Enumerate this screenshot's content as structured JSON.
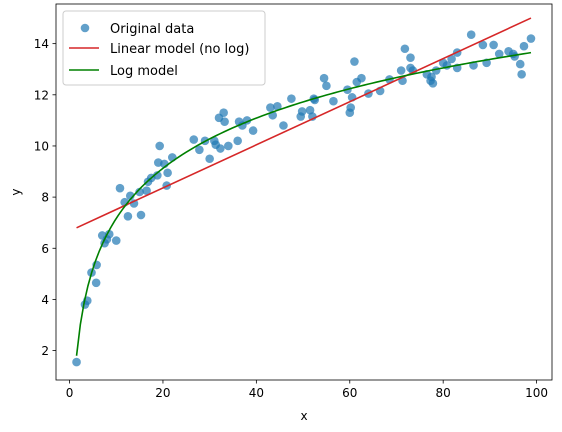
{
  "chart_data": {
    "type": "scatter",
    "xlabel": "x",
    "ylabel": "y",
    "xlim": [
      -2.9,
      103.3
    ],
    "ylim": [
      0.85,
      15.55
    ],
    "xticks": [
      0,
      20,
      40,
      60,
      80,
      100
    ],
    "yticks": [
      2,
      4,
      6,
      8,
      10,
      12,
      14
    ],
    "grid": false,
    "legend_position": "top-left",
    "legend": [
      "Original data",
      "Linear model (no log)",
      "Log model"
    ],
    "series": [
      {
        "name": "Original data",
        "kind": "scatter",
        "color": "#1f77b4",
        "points": [
          [
            1.5,
            1.55
          ],
          [
            3.3,
            3.8
          ],
          [
            3.8,
            3.95
          ],
          [
            4.7,
            5.05
          ],
          [
            5.7,
            4.65
          ],
          [
            5.8,
            5.35
          ],
          [
            7.0,
            6.5
          ],
          [
            7.5,
            6.2
          ],
          [
            8.0,
            6.35
          ],
          [
            8.5,
            6.55
          ],
          [
            10.0,
            6.3
          ],
          [
            10.8,
            8.35
          ],
          [
            11.8,
            7.8
          ],
          [
            12.5,
            7.25
          ],
          [
            13.0,
            8.05
          ],
          [
            13.8,
            7.75
          ],
          [
            15.0,
            8.2
          ],
          [
            15.3,
            7.3
          ],
          [
            16.5,
            8.25
          ],
          [
            16.8,
            8.6
          ],
          [
            17.5,
            8.75
          ],
          [
            18.8,
            8.85
          ],
          [
            19.0,
            9.35
          ],
          [
            19.3,
            10.0
          ],
          [
            20.3,
            9.3
          ],
          [
            20.8,
            8.45
          ],
          [
            21.0,
            8.95
          ],
          [
            22.0,
            9.55
          ],
          [
            26.6,
            10.25
          ],
          [
            27.8,
            9.85
          ],
          [
            29.0,
            10.2
          ],
          [
            30.0,
            9.5
          ],
          [
            31.0,
            10.2
          ],
          [
            31.3,
            10.05
          ],
          [
            32.0,
            11.1
          ],
          [
            32.3,
            9.9
          ],
          [
            33.0,
            11.3
          ],
          [
            33.2,
            10.95
          ],
          [
            34.0,
            10.0
          ],
          [
            36.0,
            10.2
          ],
          [
            36.3,
            10.95
          ],
          [
            37.0,
            10.8
          ],
          [
            38.0,
            11.0
          ],
          [
            39.3,
            10.6
          ],
          [
            43.0,
            11.5
          ],
          [
            43.5,
            11.2
          ],
          [
            44.5,
            11.55
          ],
          [
            45.8,
            10.8
          ],
          [
            47.5,
            11.85
          ],
          [
            49.5,
            11.15
          ],
          [
            49.8,
            11.35
          ],
          [
            51.5,
            11.4
          ],
          [
            52.0,
            11.15
          ],
          [
            52.3,
            11.85
          ],
          [
            52.5,
            11.8
          ],
          [
            54.5,
            12.65
          ],
          [
            55.0,
            12.35
          ],
          [
            56.5,
            11.75
          ],
          [
            59.5,
            12.2
          ],
          [
            60.0,
            11.3
          ],
          [
            60.2,
            11.5
          ],
          [
            60.5,
            11.9
          ],
          [
            61.0,
            13.3
          ],
          [
            61.5,
            12.5
          ],
          [
            62.5,
            12.65
          ],
          [
            64.0,
            12.05
          ],
          [
            66.5,
            12.15
          ],
          [
            68.5,
            12.6
          ],
          [
            71.0,
            12.95
          ],
          [
            71.3,
            12.55
          ],
          [
            71.8,
            13.8
          ],
          [
            73.0,
            13.45
          ],
          [
            73.0,
            13.05
          ],
          [
            73.5,
            12.95
          ],
          [
            76.5,
            12.8
          ],
          [
            77.3,
            12.55
          ],
          [
            77.5,
            12.7
          ],
          [
            77.8,
            12.45
          ],
          [
            78.5,
            12.95
          ],
          [
            80.0,
            13.25
          ],
          [
            80.8,
            13.15
          ],
          [
            81.8,
            13.4
          ],
          [
            83.0,
            13.65
          ],
          [
            83.0,
            13.05
          ],
          [
            86.0,
            14.35
          ],
          [
            86.5,
            13.15
          ],
          [
            88.5,
            13.95
          ],
          [
            89.3,
            13.25
          ],
          [
            90.8,
            13.95
          ],
          [
            92.0,
            13.6
          ],
          [
            94.0,
            13.7
          ],
          [
            95.0,
            13.6
          ],
          [
            95.3,
            13.5
          ],
          [
            96.5,
            13.2
          ],
          [
            96.8,
            12.8
          ],
          [
            97.3,
            13.9
          ],
          [
            98.8,
            14.2
          ]
        ]
      },
      {
        "name": "Linear model (no log)",
        "kind": "line",
        "color": "#d62728",
        "points": [
          [
            1.5,
            6.8
          ],
          [
            98.8,
            15.0
          ]
        ]
      },
      {
        "name": "Log model",
        "kind": "line",
        "color": "#008000",
        "function": {
          "form": "a + b*ln(x)",
          "a": 0.65,
          "b": 2.83
        },
        "x_range": [
          1.5,
          98.8
        ]
      }
    ]
  }
}
